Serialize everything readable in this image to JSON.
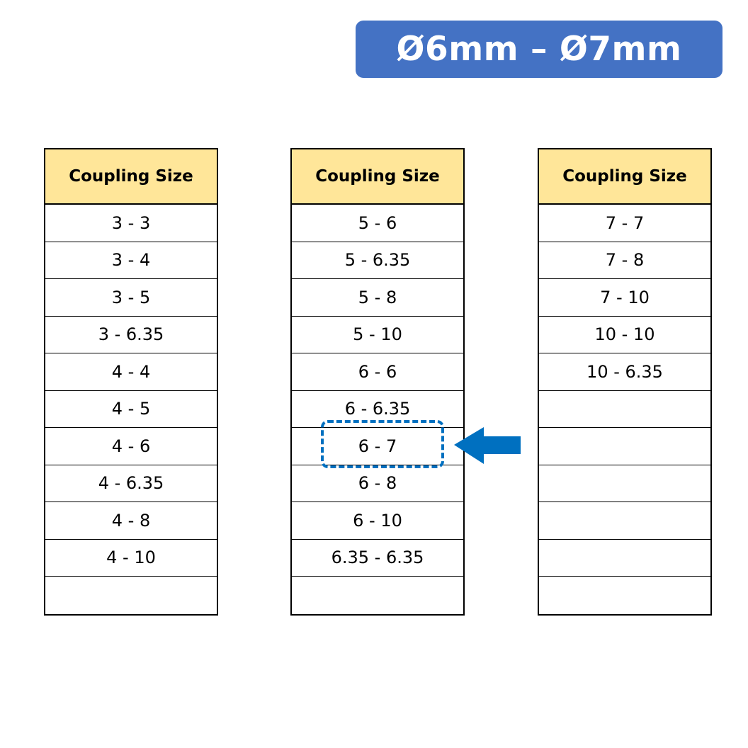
{
  "banner": {
    "title": "Ø6mm – Ø7mm",
    "color": "#4472C4"
  },
  "tables": [
    {
      "header": "Coupling Size",
      "rows": [
        "3 - 3",
        "3 - 4",
        "3 - 5",
        "3 - 6.35",
        "4 - 4",
        "4 - 5",
        "4 - 6",
        "4 - 6.35",
        "4 - 8",
        "4 - 10",
        ""
      ]
    },
    {
      "header": "Coupling Size",
      "rows": [
        "5 - 6",
        "5 - 6.35",
        "5 - 8",
        "5 - 10",
        "6 - 6",
        "6 - 6.35",
        "6 - 7",
        "6 - 8",
        "6 - 10",
        "6.35 - 6.35",
        ""
      ]
    },
    {
      "header": "Coupling Size",
      "rows": [
        "7 - 7",
        "7 - 8",
        "7 - 10",
        "10 - 10",
        "10 - 6.35",
        "",
        "",
        "",
        "",
        "",
        ""
      ]
    }
  ],
  "highlight": {
    "table": 2,
    "value": "6 - 7",
    "color": "#0070C0",
    "icon": "arrow-left-icon"
  },
  "header_color": "#FFE699"
}
